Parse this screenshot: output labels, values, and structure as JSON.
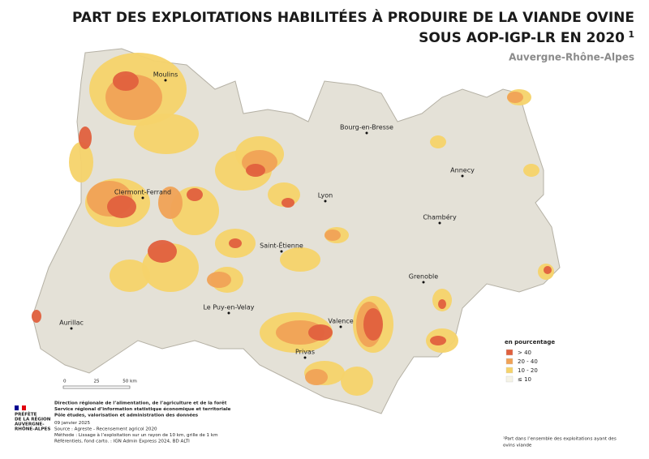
{
  "header": {
    "title_line1": "PART DES EXPLOITATIONS HABILITÉES À PRODUIRE DE LA VIANDE OVINE",
    "title_line2": "SOUS AOP-IGP-LR EN 2020",
    "title_note": "1",
    "subtitle": "Auvergne-Rhône-Alpes"
  },
  "cities": [
    "Moulins",
    "Bourg-en-Bresse",
    "Annecy",
    "Clermont-Ferrand",
    "Lyon",
    "Chambéry",
    "Saint-Étienne",
    "Grenoble",
    "Le Puy-en-Velay",
    "Aurillac",
    "Valence",
    "Privas"
  ],
  "legend": {
    "title": "en pourcentage",
    "items": [
      {
        "label": "> 40",
        "color": "#e0603e"
      },
      {
        "label": "20 - 40",
        "color": "#f0a256"
      },
      {
        "label": "10 - 20",
        "color": "#f6d36a"
      },
      {
        "label": "≤ 10",
        "color": "#f5f3e6"
      }
    ]
  },
  "scale": [
    "0",
    "25",
    "50 km"
  ],
  "logo": [
    "PRÉFÈTE",
    "DE LA RÉGION",
    "AUVERGNE-",
    "RHÔNE-ALPES"
  ],
  "footer": {
    "bold_lines": [
      "Direction régionale de l’alimentation, de l’agriculture et de la forêt",
      "Service régional d’information statistique économique et territoriale",
      "Pôle études, valorisation et administration des données"
    ],
    "lines": [
      "09 janvier 2025",
      "Source : Agreste - Recensement agricol 2020",
      "Méthode : Lissage à l’exploitation sur un rayon de 10 km, grille de 1 km",
      "Référentiels, fond carto. : IGN Admin Express 2024, BD ALTI"
    ]
  },
  "footnote": [
    "¹Part dans l’ensemble des exploitations ayant des",
    "ovins viande"
  ]
}
